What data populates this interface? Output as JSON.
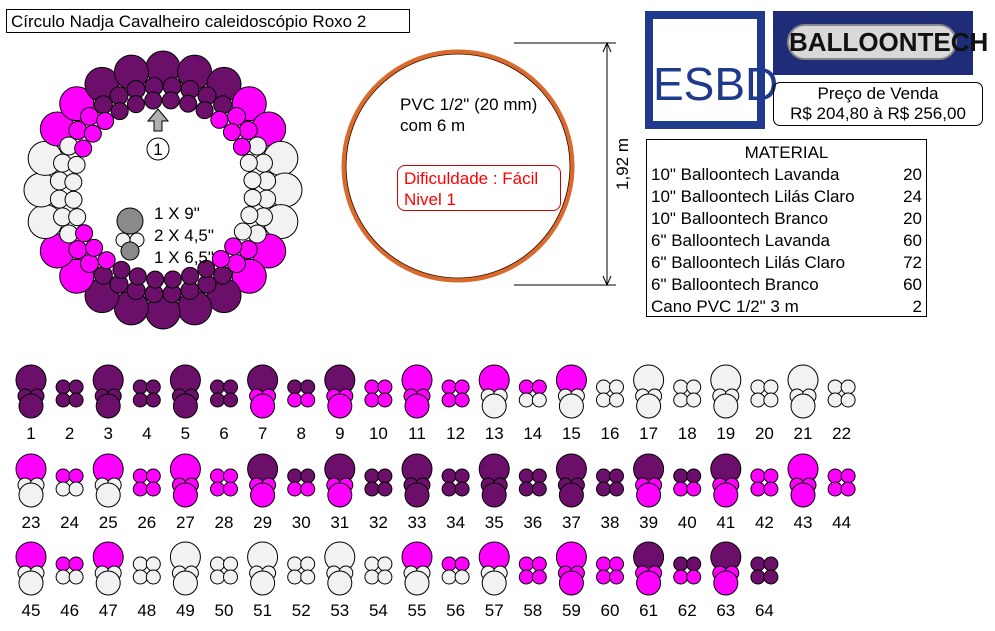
{
  "title": "Círculo Nadja Cavalheiro caleidoscópio Roxo 2",
  "colors": {
    "lavanda": "#6b0f6b",
    "lilas_claro": "#ff00ff",
    "branco": "#f2f2f2",
    "grey": "#8a8a8a",
    "frame": "#e07a3a"
  },
  "legend": {
    "arrow_number": "1",
    "sizes": [
      "1 X 9\"",
      "2 X 4,5\"",
      "1 X 6,5\""
    ]
  },
  "pvc_note": [
    "PVC 1/2\" (20 mm)",
    "com 6 m"
  ],
  "difficulty": [
    "Dificuldade : Fácil",
    "Nivel 1"
  ],
  "dimension_label": "1,92 m",
  "esbd_logo": "ESBD",
  "balloontech_logo": "BALLOONTECH",
  "price": {
    "label": "Preço de Venda",
    "value": "R$ 204,80 à R$ 256,00"
  },
  "material": {
    "title": "MATERIAL",
    "items": [
      {
        "name": "10\" Balloontech Lavanda",
        "qty": "20"
      },
      {
        "name": "10\" Balloontech Lilás Claro",
        "qty": "24"
      },
      {
        "name": "10\" Balloontech Branco",
        "qty": "20"
      },
      {
        "name": "6\" Balloontech Lavanda",
        "qty": "60"
      },
      {
        "name": "6\" Balloontech Lilás Claro",
        "qty": "72"
      },
      {
        "name": "6\" Balloontech Branco",
        "qty": "60"
      },
      {
        "name": "Cano PVC 1/2\" 3 m",
        "qty": "2"
      }
    ]
  },
  "clusters": [
    {
      "n": "1",
      "type": "big",
      "top": "lavanda",
      "bottom": "lavanda"
    },
    {
      "n": "2",
      "type": "small",
      "c": [
        "lavanda",
        "lavanda",
        "lavanda",
        "lavanda"
      ]
    },
    {
      "n": "3",
      "type": "big",
      "top": "lavanda",
      "bottom": "lavanda"
    },
    {
      "n": "4",
      "type": "small",
      "c": [
        "lavanda",
        "lavanda",
        "lavanda",
        "lavanda"
      ]
    },
    {
      "n": "5",
      "type": "big",
      "top": "lavanda",
      "bottom": "lavanda"
    },
    {
      "n": "6",
      "type": "small",
      "c": [
        "lavanda",
        "lavanda",
        "lavanda",
        "lavanda"
      ]
    },
    {
      "n": "7",
      "type": "big",
      "top": "lavanda",
      "bottom": "lilas_claro"
    },
    {
      "n": "8",
      "type": "small",
      "c": [
        "lavanda",
        "lavanda",
        "lilas_claro",
        "lilas_claro"
      ]
    },
    {
      "n": "9",
      "type": "big",
      "top": "lavanda",
      "bottom": "lilas_claro"
    },
    {
      "n": "10",
      "type": "small",
      "c": [
        "lilas_claro",
        "lilas_claro",
        "lilas_claro",
        "lilas_claro"
      ]
    },
    {
      "n": "11",
      "type": "big",
      "top": "lilas_claro",
      "bottom": "lilas_claro"
    },
    {
      "n": "12",
      "type": "small",
      "c": [
        "lilas_claro",
        "lilas_claro",
        "lilas_claro",
        "lilas_claro"
      ]
    },
    {
      "n": "13",
      "type": "big",
      "top": "lilas_claro",
      "bottom": "branco"
    },
    {
      "n": "14",
      "type": "small",
      "c": [
        "lilas_claro",
        "lilas_claro",
        "branco",
        "branco"
      ]
    },
    {
      "n": "15",
      "type": "big",
      "top": "lilas_claro",
      "bottom": "branco"
    },
    {
      "n": "16",
      "type": "small",
      "c": [
        "branco",
        "branco",
        "branco",
        "branco"
      ]
    },
    {
      "n": "17",
      "type": "big",
      "top": "branco",
      "bottom": "branco"
    },
    {
      "n": "18",
      "type": "small",
      "c": [
        "branco",
        "branco",
        "branco",
        "branco"
      ]
    },
    {
      "n": "19",
      "type": "big",
      "top": "branco",
      "bottom": "branco"
    },
    {
      "n": "20",
      "type": "small",
      "c": [
        "branco",
        "branco",
        "branco",
        "branco"
      ]
    },
    {
      "n": "21",
      "type": "big",
      "top": "branco",
      "bottom": "branco"
    },
    {
      "n": "22",
      "type": "small",
      "c": [
        "branco",
        "branco",
        "branco",
        "branco"
      ]
    },
    {
      "n": "23",
      "type": "big",
      "top": "lilas_claro",
      "bottom": "branco"
    },
    {
      "n": "24",
      "type": "small",
      "c": [
        "lilas_claro",
        "lilas_claro",
        "branco",
        "branco"
      ]
    },
    {
      "n": "25",
      "type": "big",
      "top": "lilas_claro",
      "bottom": "branco"
    },
    {
      "n": "26",
      "type": "small",
      "c": [
        "lilas_claro",
        "lilas_claro",
        "lilas_claro",
        "lilas_claro"
      ]
    },
    {
      "n": "27",
      "type": "big",
      "top": "lilas_claro",
      "bottom": "lilas_claro"
    },
    {
      "n": "28",
      "type": "small",
      "c": [
        "lilas_claro",
        "lilas_claro",
        "lilas_claro",
        "lilas_claro"
      ]
    },
    {
      "n": "29",
      "type": "big",
      "top": "lavanda",
      "bottom": "lilas_claro"
    },
    {
      "n": "30",
      "type": "small",
      "c": [
        "lavanda",
        "lavanda",
        "lilas_claro",
        "lilas_claro"
      ]
    },
    {
      "n": "31",
      "type": "big",
      "top": "lavanda",
      "bottom": "lilas_claro"
    },
    {
      "n": "32",
      "type": "small",
      "c": [
        "lavanda",
        "lavanda",
        "lavanda",
        "lavanda"
      ]
    },
    {
      "n": "33",
      "type": "big",
      "top": "lavanda",
      "bottom": "lavanda"
    },
    {
      "n": "34",
      "type": "small",
      "c": [
        "lavanda",
        "lavanda",
        "lavanda",
        "lavanda"
      ]
    },
    {
      "n": "35",
      "type": "big",
      "top": "lavanda",
      "bottom": "lavanda"
    },
    {
      "n": "36",
      "type": "small",
      "c": [
        "lavanda",
        "lavanda",
        "lavanda",
        "lavanda"
      ]
    },
    {
      "n": "37",
      "type": "big",
      "top": "lavanda",
      "bottom": "lavanda"
    },
    {
      "n": "38",
      "type": "small",
      "c": [
        "lavanda",
        "lavanda",
        "lavanda",
        "lavanda"
      ]
    },
    {
      "n": "39",
      "type": "big",
      "top": "lavanda",
      "bottom": "lilas_claro"
    },
    {
      "n": "40",
      "type": "small",
      "c": [
        "lavanda",
        "lavanda",
        "lilas_claro",
        "lilas_claro"
      ]
    },
    {
      "n": "41",
      "type": "big",
      "top": "lavanda",
      "bottom": "lilas_claro"
    },
    {
      "n": "42",
      "type": "small",
      "c": [
        "lilas_claro",
        "lilas_claro",
        "lilas_claro",
        "lilas_claro"
      ]
    },
    {
      "n": "43",
      "type": "big",
      "top": "lilas_claro",
      "bottom": "lilas_claro"
    },
    {
      "n": "44",
      "type": "small",
      "c": [
        "lilas_claro",
        "lilas_claro",
        "lilas_claro",
        "lilas_claro"
      ]
    },
    {
      "n": "45",
      "type": "big",
      "top": "lilas_claro",
      "bottom": "branco"
    },
    {
      "n": "46",
      "type": "small",
      "c": [
        "lilas_claro",
        "lilas_claro",
        "branco",
        "branco"
      ]
    },
    {
      "n": "47",
      "type": "big",
      "top": "lilas_claro",
      "bottom": "branco"
    },
    {
      "n": "48",
      "type": "small",
      "c": [
        "branco",
        "branco",
        "branco",
        "branco"
      ]
    },
    {
      "n": "49",
      "type": "big",
      "top": "branco",
      "bottom": "branco"
    },
    {
      "n": "50",
      "type": "small",
      "c": [
        "branco",
        "branco",
        "branco",
        "branco"
      ]
    },
    {
      "n": "51",
      "type": "big",
      "top": "branco",
      "bottom": "branco"
    },
    {
      "n": "52",
      "type": "small",
      "c": [
        "branco",
        "branco",
        "branco",
        "branco"
      ]
    },
    {
      "n": "53",
      "type": "big",
      "top": "branco",
      "bottom": "branco"
    },
    {
      "n": "54",
      "type": "small",
      "c": [
        "branco",
        "branco",
        "branco",
        "branco"
      ]
    },
    {
      "n": "55",
      "type": "big",
      "top": "lilas_claro",
      "bottom": "branco"
    },
    {
      "n": "56",
      "type": "small",
      "c": [
        "lilas_claro",
        "lilas_claro",
        "branco",
        "branco"
      ]
    },
    {
      "n": "57",
      "type": "big",
      "top": "lilas_claro",
      "bottom": "branco"
    },
    {
      "n": "58",
      "type": "small",
      "c": [
        "lilas_claro",
        "lilas_claro",
        "lilas_claro",
        "lilas_claro"
      ]
    },
    {
      "n": "59",
      "type": "big",
      "top": "lilas_claro",
      "bottom": "lilas_claro"
    },
    {
      "n": "60",
      "type": "small",
      "c": [
        "lilas_claro",
        "lilas_claro",
        "lilas_claro",
        "lilas_claro"
      ]
    },
    {
      "n": "61",
      "type": "big",
      "top": "lavanda",
      "bottom": "lilas_claro"
    },
    {
      "n": "62",
      "type": "small",
      "c": [
        "lavanda",
        "lavanda",
        "lilas_claro",
        "lilas_claro"
      ]
    },
    {
      "n": "63",
      "type": "big",
      "top": "lavanda",
      "bottom": "lilas_claro"
    },
    {
      "n": "64",
      "type": "small",
      "c": [
        "lavanda",
        "lavanda",
        "lavanda",
        "lavanda"
      ]
    }
  ]
}
